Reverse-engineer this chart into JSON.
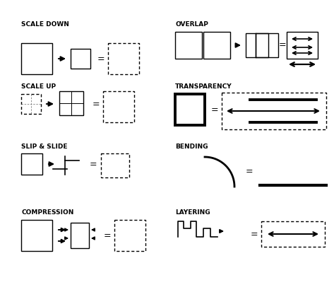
{
  "bg_color": "#ffffff",
  "text_color": "#000000",
  "labels": {
    "scale_down": "SCALE DOWN",
    "scale_up": "SCALE UP",
    "slip_slide": "SLIP & SLIDE",
    "compression": "COMPRESSION",
    "overlap": "OVERLAP",
    "transparency": "TRANSPARENCY",
    "bending": "BENDING",
    "layering": "LAYERING"
  },
  "label_fontsize": 6.5,
  "label_fontweight": "bold",
  "eq_fontsize": 9
}
